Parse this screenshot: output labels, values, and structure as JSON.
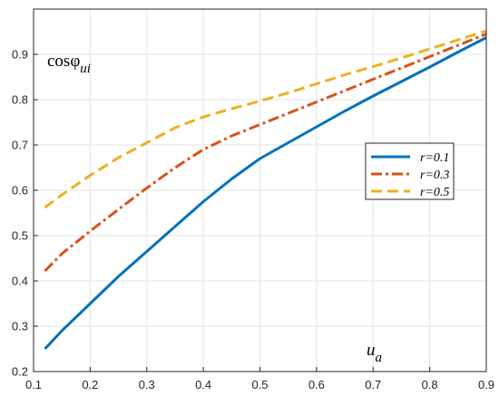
{
  "chart_data": {
    "type": "line",
    "xlabel": "u_a",
    "ylabel": "cosφ_ui",
    "xlim": [
      0.1,
      0.9
    ],
    "ylim": [
      0.2,
      1.0
    ],
    "grid": true,
    "legend_position": "right",
    "x_ticks": [
      0.1,
      0.2,
      0.3,
      0.4,
      0.5,
      0.6,
      0.7,
      0.8,
      0.9
    ],
    "y_ticks": [
      0.2,
      0.3,
      0.4,
      0.5,
      0.6,
      0.7,
      0.8,
      0.9
    ],
    "x_tick_labels": [
      "0.1",
      "0.2",
      "0.3",
      "0.4",
      "0.5",
      "0.6",
      "0.7",
      "0.8",
      "0.9"
    ],
    "y_tick_labels": [
      "0.2",
      "0.3",
      "0.4",
      "0.5",
      "0.6",
      "0.7",
      "0.8",
      "0.9"
    ],
    "series": [
      {
        "name": "r=0.1",
        "color": "#0072BD",
        "style": "solid",
        "x": [
          0.12,
          0.15,
          0.2,
          0.25,
          0.3,
          0.35,
          0.4,
          0.45,
          0.5,
          0.55,
          0.6,
          0.65,
          0.7,
          0.75,
          0.8,
          0.85,
          0.9
        ],
        "y": [
          0.25,
          0.29,
          0.35,
          0.41,
          0.465,
          0.52,
          0.575,
          0.625,
          0.67,
          0.705,
          0.74,
          0.775,
          0.808,
          0.84,
          0.872,
          0.905,
          0.937
        ]
      },
      {
        "name": "r=0.3",
        "color": "#D95319",
        "style": "dashdot",
        "x": [
          0.12,
          0.15,
          0.2,
          0.25,
          0.3,
          0.35,
          0.4,
          0.45,
          0.5,
          0.55,
          0.6,
          0.65,
          0.7,
          0.75,
          0.8,
          0.85,
          0.9
        ],
        "y": [
          0.422,
          0.46,
          0.51,
          0.558,
          0.605,
          0.65,
          0.69,
          0.72,
          0.745,
          0.77,
          0.795,
          0.82,
          0.845,
          0.87,
          0.895,
          0.92,
          0.945
        ]
      },
      {
        "name": "r=0.5",
        "color": "#EDB120",
        "style": "dashed",
        "x": [
          0.12,
          0.15,
          0.2,
          0.25,
          0.3,
          0.35,
          0.4,
          0.45,
          0.5,
          0.55,
          0.6,
          0.65,
          0.7,
          0.75,
          0.8,
          0.85,
          0.9
        ],
        "y": [
          0.562,
          0.59,
          0.633,
          0.672,
          0.705,
          0.738,
          0.762,
          0.78,
          0.797,
          0.815,
          0.835,
          0.855,
          0.873,
          0.892,
          0.912,
          0.932,
          0.952
        ]
      }
    ]
  }
}
